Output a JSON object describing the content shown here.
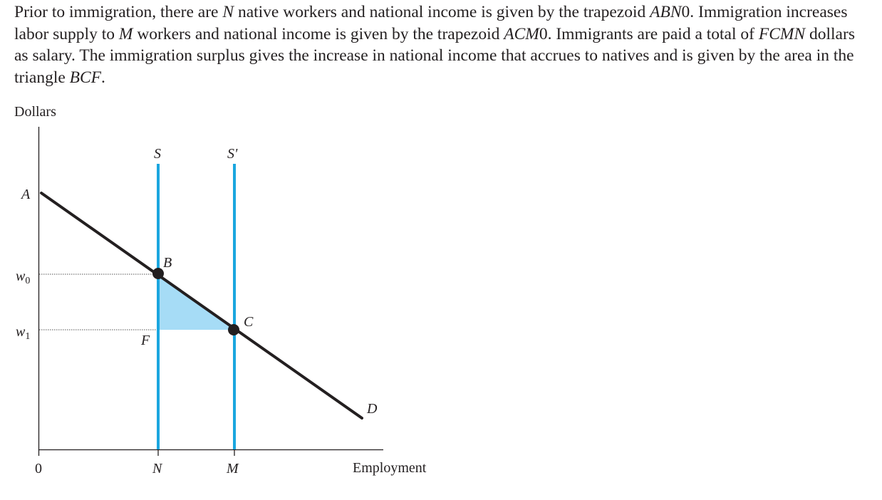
{
  "caption": {
    "s1_a": "Prior to immigration, there are ",
    "s1_N": "N",
    "s1_b": " native workers and national income is given by the trapezoid ",
    "s1_shape": "ABN",
    "s1_zero": "0",
    "s1_c": ". Immigration increases labor supply to ",
    "s2_M": "M",
    "s2_a": " workers and national income is given by the trapezoid ",
    "s2_shape": "ACM",
    "s2_zero": "0",
    "s2_b": ". Immigrants are paid a total of ",
    "s3_shape": "FCMN",
    "s3_a": " dollars as salary. The immigration surplus gives the increase in national income that accrues to natives and is given by the area in the triangle ",
    "s4_shape": "BCF",
    "s4_end": "."
  },
  "diagram": {
    "y_axis_label": "Dollars",
    "x_axis_label": "Employment",
    "origin_label": "0",
    "intercept_label": "A",
    "wage_high_label": "w",
    "wage_high_sub": "0",
    "wage_low_label": "w",
    "wage_low_sub": "1",
    "supply_before_label": "S",
    "supply_after_label": "S'",
    "demand_label": "D",
    "point_b_label": "B",
    "point_c_label": "C",
    "point_f_label": "F",
    "workers_before_label": "N",
    "workers_after_label": "M"
  },
  "colors": {
    "supply_line": "#1aa6df",
    "surplus_fill": "#a6dcf6",
    "demand_line": "#231f20",
    "axis": "#231f20",
    "guide_line": "#555555"
  }
}
